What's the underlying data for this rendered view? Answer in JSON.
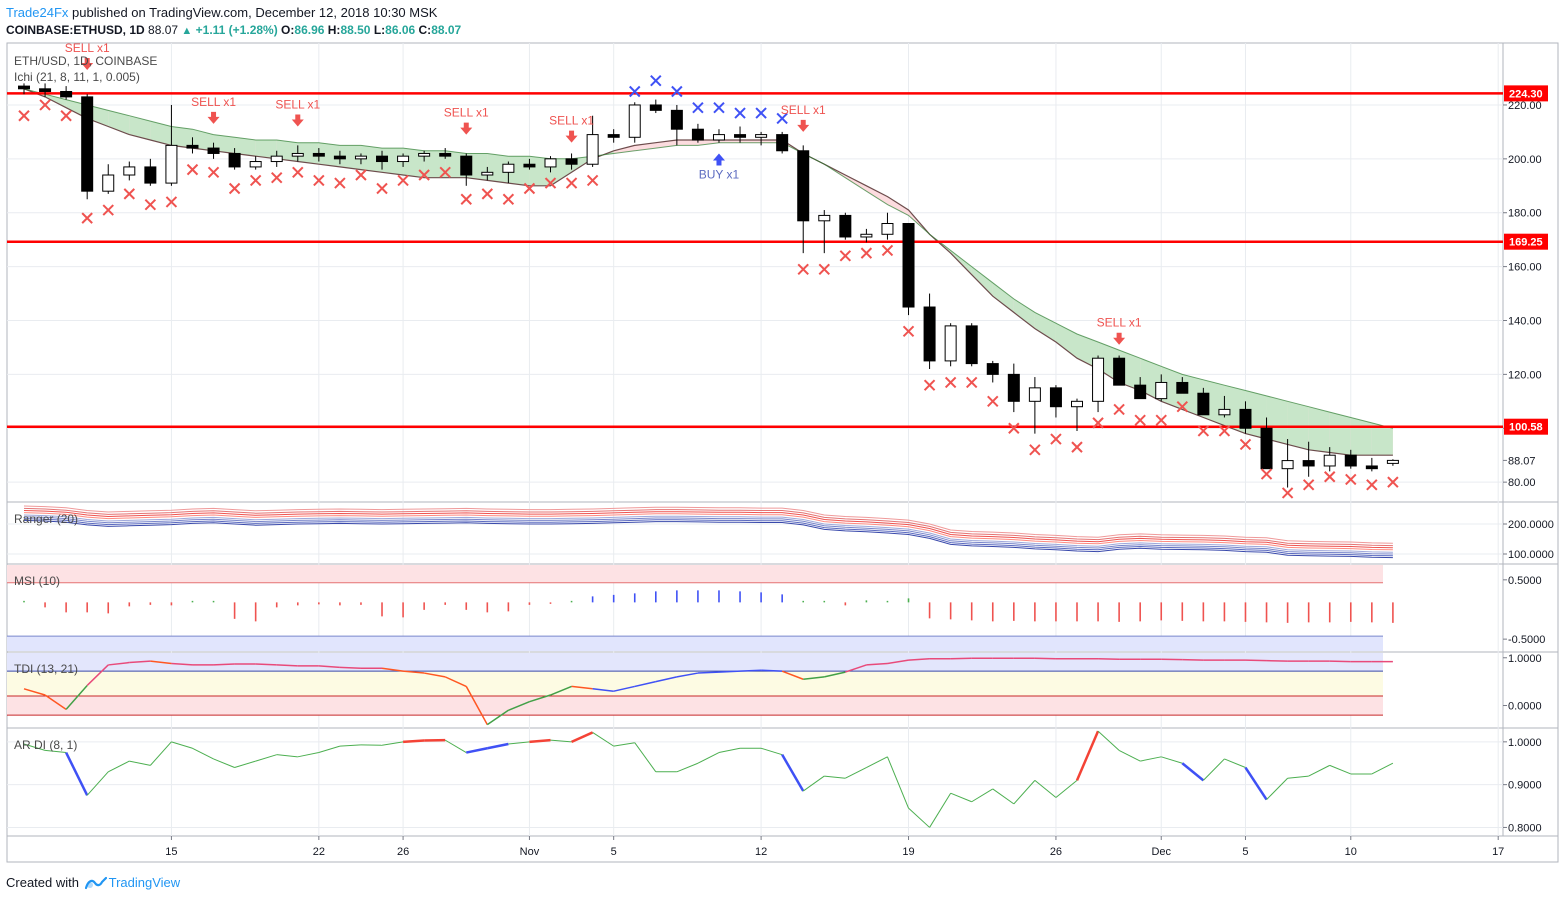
{
  "header": {
    "publisher": "Trade24Fx",
    "published_text": "published on TradingView.com, December 12, 2018 10:30 MSK",
    "symbol_line": "COINBASE:ETHUSD, 1D",
    "last": "88.07",
    "change": "+1.11 (+1.28%)",
    "open_label": "O:",
    "open": "86.96",
    "high_label": "H:",
    "high": "88.50",
    "low_label": "L:",
    "low": "86.06",
    "close_label": "C:",
    "close": "88.07"
  },
  "footer": {
    "created_with": "Created with",
    "brand": "TradingView"
  },
  "colors": {
    "up": "#26a69a",
    "down": "#ef5350",
    "level": "#ff0000",
    "band": "#f8b3b8",
    "sell": "#ef5350",
    "buy": "#3f51f5",
    "grid": "#e9ecf0"
  },
  "chart_data": [
    {
      "type": "candlestick",
      "title": "ETH/USD, 1D, COINBASE",
      "indicator": "Ichi (21, 8, 11, 1, 0.005)",
      "ylim": [
        73,
        243
      ],
      "y_ticks": [
        80,
        100,
        120,
        140,
        160,
        180,
        200,
        220
      ],
      "y_tick_labels": [
        "80.00",
        "100.00",
        "120.00",
        "140.00",
        "160.00",
        "180.00",
        "200.00",
        "220.00"
      ],
      "x_ticks": [
        "15",
        "22",
        "26",
        "Nov",
        "5",
        "12",
        "19",
        "26",
        "Dec",
        "5",
        "10",
        "17"
      ],
      "x_tick_bars": [
        7,
        14,
        18,
        24,
        28,
        35,
        42,
        49,
        54,
        58,
        63,
        70
      ],
      "last_price_label": "88.07",
      "levels": [
        {
          "value": 224.3,
          "label": "224.30"
        },
        {
          "value": 169.25,
          "label": "169.25"
        },
        {
          "value": 100.58,
          "label": "100.58"
        }
      ],
      "candles": [
        [
          227,
          228,
          224,
          226
        ],
        [
          226,
          228,
          223,
          225
        ],
        [
          225,
          227,
          222,
          223
        ],
        [
          223,
          224,
          185,
          188
        ],
        [
          188,
          198,
          187,
          194
        ],
        [
          194,
          199,
          192,
          197
        ],
        [
          197,
          200,
          190,
          191
        ],
        [
          191,
          220,
          190,
          205
        ],
        [
          205,
          208,
          202,
          204
        ],
        [
          204,
          206,
          200,
          202
        ],
        [
          202,
          204,
          196,
          197
        ],
        [
          197,
          201,
          196,
          199
        ],
        [
          199,
          203,
          197,
          201
        ],
        [
          201,
          205,
          199,
          202
        ],
        [
          202,
          204,
          199,
          201
        ],
        [
          201,
          203,
          198,
          200
        ],
        [
          200,
          202,
          198,
          201
        ],
        [
          201,
          203,
          196,
          199
        ],
        [
          199,
          202,
          197,
          201
        ],
        [
          201,
          203,
          199,
          202
        ],
        [
          202,
          204,
          200,
          201
        ],
        [
          201,
          202,
          190,
          194
        ],
        [
          194,
          197,
          192,
          195
        ],
        [
          195,
          199,
          191,
          198
        ],
        [
          198,
          200,
          196,
          197
        ],
        [
          197,
          201,
          195,
          200
        ],
        [
          200,
          202,
          196,
          198
        ],
        [
          198,
          216,
          197,
          209
        ],
        [
          209,
          211,
          206,
          208
        ],
        [
          208,
          221,
          206,
          220
        ],
        [
          220,
          222,
          217,
          218
        ],
        [
          218,
          220,
          205,
          211
        ],
        [
          211,
          213,
          206,
          207
        ],
        [
          207,
          211,
          206,
          209
        ],
        [
          209,
          212,
          206,
          208
        ],
        [
          208,
          210,
          205,
          209
        ],
        [
          209,
          210,
          202,
          203
        ],
        [
          203,
          205,
          165,
          177
        ],
        [
          177,
          181,
          165,
          179
        ],
        [
          179,
          180,
          170,
          171
        ],
        [
          171,
          174,
          169,
          172
        ],
        [
          172,
          180,
          170,
          176
        ],
        [
          176,
          176,
          142,
          145
        ],
        [
          145,
          150,
          122,
          125
        ],
        [
          125,
          139,
          123,
          138
        ],
        [
          138,
          139,
          123,
          124
        ],
        [
          124,
          125,
          117,
          120
        ],
        [
          120,
          124,
          106,
          110
        ],
        [
          110,
          119,
          98,
          115
        ],
        [
          115,
          116,
          104,
          108
        ],
        [
          108,
          111,
          99,
          110
        ],
        [
          110,
          127,
          106,
          126
        ],
        [
          126,
          127,
          117,
          116
        ],
        [
          116,
          119,
          111,
          111
        ],
        [
          111,
          120,
          110,
          117
        ],
        [
          117,
          119,
          113,
          113
        ],
        [
          113,
          115,
          105,
          105
        ],
        [
          105,
          112,
          104,
          107
        ],
        [
          107,
          110,
          98,
          100
        ],
        [
          100,
          104,
          85,
          85
        ],
        [
          85,
          96,
          78,
          88
        ],
        [
          88,
          95,
          82,
          86
        ],
        [
          86,
          93,
          84,
          90
        ],
        [
          90,
          92,
          85,
          86
        ],
        [
          86,
          89,
          84,
          85
        ],
        [
          86.96,
          88.5,
          86.06,
          88.07
        ]
      ],
      "cloud_upper": [
        226,
        223,
        219,
        215,
        212,
        209,
        207,
        205,
        204,
        203,
        202,
        201,
        200,
        199,
        198,
        197,
        196,
        195,
        194,
        193,
        193,
        193,
        192,
        191,
        190,
        190,
        195,
        200,
        203,
        205,
        206,
        207,
        207,
        207,
        207,
        207,
        207,
        202,
        198,
        194,
        190,
        186,
        181,
        172,
        165,
        157,
        149,
        143,
        137,
        132,
        126,
        122,
        117,
        114,
        110,
        107,
        104,
        101,
        98,
        96,
        94,
        92,
        91,
        90,
        90,
        90
      ],
      "cloud_lower": [
        226,
        224,
        222,
        220,
        218,
        216,
        214,
        212,
        211,
        209,
        208,
        207,
        207,
        206,
        206,
        205,
        205,
        204,
        204,
        203,
        203,
        202,
        202,
        201,
        201,
        200,
        200,
        201,
        202,
        203,
        204,
        205,
        205,
        206,
        206,
        206,
        206,
        202,
        198,
        193,
        188,
        183,
        179,
        172,
        166,
        160,
        154,
        148,
        143,
        139,
        135,
        132,
        129,
        126,
        123,
        120,
        118,
        116,
        114,
        112,
        110,
        108,
        106,
        104,
        102,
        100
      ],
      "x_marks": [
        {
          "i": 0,
          "v": 216,
          "c": "sell"
        },
        {
          "i": 1,
          "v": 220,
          "c": "sell"
        },
        {
          "i": 2,
          "v": 216,
          "c": "sell"
        },
        {
          "i": 3,
          "v": 178,
          "c": "sell"
        },
        {
          "i": 4,
          "v": 181,
          "c": "sell"
        },
        {
          "i": 5,
          "v": 187,
          "c": "sell"
        },
        {
          "i": 6,
          "v": 183,
          "c": "sell"
        },
        {
          "i": 7,
          "v": 184,
          "c": "sell"
        },
        {
          "i": 8,
          "v": 196,
          "c": "sell"
        },
        {
          "i": 9,
          "v": 195,
          "c": "sell"
        },
        {
          "i": 10,
          "v": 189,
          "c": "sell"
        },
        {
          "i": 11,
          "v": 192,
          "c": "sell"
        },
        {
          "i": 12,
          "v": 193,
          "c": "sell"
        },
        {
          "i": 13,
          "v": 195,
          "c": "sell"
        },
        {
          "i": 14,
          "v": 192,
          "c": "sell"
        },
        {
          "i": 15,
          "v": 191,
          "c": "sell"
        },
        {
          "i": 16,
          "v": 194,
          "c": "sell"
        },
        {
          "i": 17,
          "v": 189,
          "c": "sell"
        },
        {
          "i": 18,
          "v": 192,
          "c": "sell"
        },
        {
          "i": 19,
          "v": 194,
          "c": "sell"
        },
        {
          "i": 20,
          "v": 195,
          "c": "sell"
        },
        {
          "i": 21,
          "v": 185,
          "c": "sell"
        },
        {
          "i": 22,
          "v": 187,
          "c": "sell"
        },
        {
          "i": 23,
          "v": 185,
          "c": "sell"
        },
        {
          "i": 24,
          "v": 189,
          "c": "sell"
        },
        {
          "i": 25,
          "v": 191,
          "c": "sell"
        },
        {
          "i": 26,
          "v": 191,
          "c": "sell"
        },
        {
          "i": 27,
          "v": 192,
          "c": "sell"
        },
        {
          "i": 29,
          "v": 225,
          "c": "buy"
        },
        {
          "i": 30,
          "v": 229,
          "c": "buy"
        },
        {
          "i": 31,
          "v": 225,
          "c": "buy"
        },
        {
          "i": 32,
          "v": 219,
          "c": "buy"
        },
        {
          "i": 33,
          "v": 219,
          "c": "buy"
        },
        {
          "i": 34,
          "v": 217,
          "c": "buy"
        },
        {
          "i": 35,
          "v": 217,
          "c": "buy"
        },
        {
          "i": 36,
          "v": 215,
          "c": "buy"
        },
        {
          "i": 37,
          "v": 159,
          "c": "sell"
        },
        {
          "i": 38,
          "v": 159,
          "c": "sell"
        },
        {
          "i": 39,
          "v": 164,
          "c": "sell"
        },
        {
          "i": 40,
          "v": 165,
          "c": "sell"
        },
        {
          "i": 41,
          "v": 166,
          "c": "sell"
        },
        {
          "i": 42,
          "v": 136,
          "c": "sell"
        },
        {
          "i": 43,
          "v": 116,
          "c": "sell"
        },
        {
          "i": 44,
          "v": 117,
          "c": "sell"
        },
        {
          "i": 45,
          "v": 117,
          "c": "sell"
        },
        {
          "i": 46,
          "v": 110,
          "c": "sell"
        },
        {
          "i": 47,
          "v": 100,
          "c": "sell"
        },
        {
          "i": 48,
          "v": 92,
          "c": "sell"
        },
        {
          "i": 49,
          "v": 96,
          "c": "sell"
        },
        {
          "i": 50,
          "v": 93,
          "c": "sell"
        },
        {
          "i": 51,
          "v": 102,
          "c": "sell"
        },
        {
          "i": 52,
          "v": 107,
          "c": "sell"
        },
        {
          "i": 53,
          "v": 103,
          "c": "sell"
        },
        {
          "i": 54,
          "v": 103,
          "c": "sell"
        },
        {
          "i": 55,
          "v": 108,
          "c": "sell"
        },
        {
          "i": 56,
          "v": 99,
          "c": "sell"
        },
        {
          "i": 57,
          "v": 99,
          "c": "sell"
        },
        {
          "i": 58,
          "v": 94,
          "c": "sell"
        },
        {
          "i": 59,
          "v": 83,
          "c": "sell"
        },
        {
          "i": 60,
          "v": 76,
          "c": "sell"
        },
        {
          "i": 61,
          "v": 79,
          "c": "sell"
        },
        {
          "i": 62,
          "v": 82,
          "c": "sell"
        },
        {
          "i": 63,
          "v": 81,
          "c": "sell"
        },
        {
          "i": 64,
          "v": 79,
          "c": "sell"
        },
        {
          "i": 65,
          "v": 80,
          "c": "sell"
        }
      ],
      "signals": [
        {
          "i": 3,
          "v": 233,
          "label": "SELL x1",
          "type": "sell"
        },
        {
          "i": 9,
          "v": 213,
          "label": "SELL x1",
          "type": "sell"
        },
        {
          "i": 13,
          "v": 212,
          "label": "SELL x1",
          "type": "sell"
        },
        {
          "i": 21,
          "v": 209,
          "label": "SELL x1",
          "type": "sell"
        },
        {
          "i": 26,
          "v": 206,
          "label": "SELL x1",
          "type": "sell"
        },
        {
          "i": 33,
          "v": 202,
          "label": "BUY x1",
          "type": "buy"
        },
        {
          "i": 37,
          "v": 210,
          "label": "SELL x1",
          "type": "sell"
        },
        {
          "i": 52,
          "v": 131,
          "label": "SELL x1",
          "type": "sell"
        }
      ]
    },
    {
      "type": "line",
      "title": "Ranger (20)",
      "ylim": [
        70,
        270
      ],
      "y_ticks": [
        100,
        200
      ],
      "y_tick_labels": [
        "100.0000",
        "200.0000"
      ],
      "mid": [
        230,
        228,
        224,
        215,
        210,
        212,
        214,
        216,
        220,
        222,
        218,
        214,
        216,
        218,
        219,
        220,
        219,
        218,
        219,
        220,
        221,
        222,
        220,
        219,
        218,
        218,
        219,
        220,
        222,
        224,
        226,
        226,
        225,
        224,
        224,
        223,
        223,
        215,
        200,
        195,
        192,
        188,
        183,
        170,
        150,
        145,
        143,
        140,
        135,
        132,
        128,
        126,
        134,
        137,
        134,
        133,
        132,
        130,
        126,
        124,
        114,
        112,
        111,
        110,
        107,
        106
      ]
    },
    {
      "type": "bar",
      "title": "MSI (10)",
      "ylim": [
        -0.7,
        0.75
      ],
      "y_ticks": [
        0.5,
        -0.5
      ],
      "y_tick_labels": [
        "0.5000",
        "-0.5000"
      ],
      "values": [
        0.03,
        -0.1,
        -0.2,
        -0.2,
        -0.22,
        -0.08,
        -0.05,
        -0.06,
        0.02,
        0.02,
        -0.33,
        -0.38,
        -0.1,
        -0.06,
        -0.04,
        -0.06,
        -0.05,
        -0.28,
        -0.3,
        -0.15,
        -0.05,
        -0.15,
        -0.2,
        -0.18,
        -0.05,
        -0.02,
        0.03,
        0.12,
        0.15,
        0.18,
        0.22,
        0.24,
        0.24,
        0.24,
        0.22,
        0.2,
        0.16,
        0.02,
        0.02,
        -0.06,
        0.04,
        0.03,
        0.08,
        -0.32,
        -0.34,
        -0.36,
        -0.38,
        -0.37,
        -0.38,
        -0.38,
        -0.38,
        -0.38,
        -0.39,
        -0.38,
        -0.36,
        -0.37,
        -0.38,
        -0.38,
        -0.39,
        -0.4,
        -0.41,
        -0.4,
        -0.4,
        -0.39,
        -0.4,
        -0.41
      ]
    },
    {
      "type": "line",
      "title": "TDI (13, 21)",
      "ylim": [
        -0.45,
        1.1
      ],
      "y_ticks": [
        1.0,
        0.0
      ],
      "y_tick_labels": [
        "1.0000",
        "0.0000"
      ],
      "values": [
        0.35,
        0.22,
        -0.08,
        0.42,
        0.85,
        0.9,
        0.93,
        0.88,
        0.85,
        0.85,
        0.87,
        0.87,
        0.85,
        0.83,
        0.83,
        0.8,
        0.78,
        0.78,
        0.72,
        0.68,
        0.6,
        0.4,
        -0.4,
        -0.1,
        0.08,
        0.22,
        0.4,
        0.35,
        0.3,
        0.4,
        0.5,
        0.6,
        0.68,
        0.7,
        0.72,
        0.74,
        0.72,
        0.55,
        0.6,
        0.7,
        0.85,
        0.88,
        0.95,
        0.98,
        0.98,
        0.99,
        0.99,
        0.99,
        0.99,
        0.98,
        0.98,
        0.98,
        0.97,
        0.97,
        0.97,
        0.96,
        0.95,
        0.95,
        0.95,
        0.94,
        0.93,
        0.93,
        0.93,
        0.92,
        0.92,
        0.92
      ]
    },
    {
      "type": "line",
      "title": "AR DI (8, 1)",
      "ylim": [
        0.78,
        1.03
      ],
      "y_ticks": [
        1.0,
        0.9,
        0.8
      ],
      "y_tick_labels": [
        "1.0000",
        "0.9000",
        "0.8000"
      ],
      "values": [
        0.995,
        0.98,
        0.975,
        0.875,
        0.93,
        0.955,
        0.945,
        1.0,
        0.985,
        0.96,
        0.94,
        0.955,
        0.97,
        0.965,
        0.975,
        0.99,
        0.993,
        0.992,
        1.0,
        1.003,
        1.004,
        0.975,
        0.985,
        0.995,
        1.0,
        1.004,
        1.0,
        1.022,
        0.99,
        0.998,
        0.93,
        0.93,
        0.95,
        0.975,
        0.985,
        0.985,
        0.97,
        0.885,
        0.92,
        0.915,
        0.94,
        0.965,
        0.845,
        0.8,
        0.88,
        0.86,
        0.89,
        0.855,
        0.91,
        0.87,
        0.91,
        1.025,
        0.98,
        0.955,
        0.965,
        0.95,
        0.91,
        0.96,
        0.94,
        0.865,
        0.915,
        0.92,
        0.945,
        0.925,
        0.925,
        0.95
      ]
    }
  ]
}
